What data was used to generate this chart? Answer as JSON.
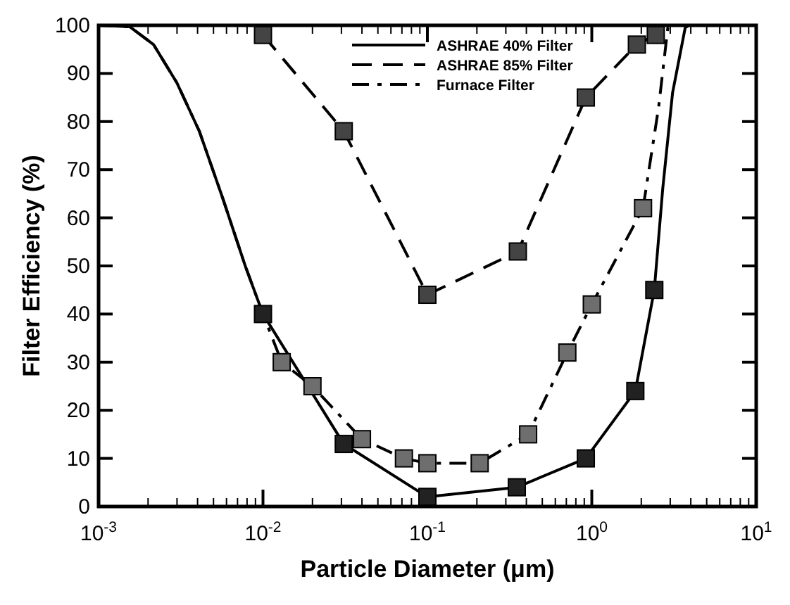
{
  "chart_data": {
    "type": "line",
    "xlabel": "Particle Diameter (μm)",
    "ylabel": "Filter Efficiency (%)",
    "log": "x",
    "grid": false,
    "legend": "top",
    "xlim": [
      0.001,
      10
    ],
    "ylim": [
      0,
      100
    ],
    "xticks": [
      {
        "value": 0.001,
        "label": "10$^{-3}$"
      },
      {
        "value": 0.002,
        "label": null
      },
      {
        "value": 0.003,
        "label": null
      },
      {
        "value": 0.004,
        "label": null
      },
      {
        "value": 0.005,
        "label": null
      },
      {
        "value": 0.006,
        "label": null
      },
      {
        "value": 0.007,
        "label": null
      },
      {
        "value": 0.008,
        "label": null
      },
      {
        "value": 0.009,
        "label": null
      },
      {
        "value": 0.01,
        "label": "10$^{-2}$"
      },
      {
        "value": 0.02,
        "label": null
      },
      {
        "value": 0.03,
        "label": null
      },
      {
        "value": 0.04,
        "label": null
      },
      {
        "value": 0.05,
        "label": null
      },
      {
        "value": 0.06,
        "label": null
      },
      {
        "value": 0.07,
        "label": null
      },
      {
        "value": 0.08,
        "label": null
      },
      {
        "value": 0.09,
        "label": null
      },
      {
        "value": 0.1,
        "label": "10$^{-1}$"
      },
      {
        "value": 0.2,
        "label": null
      },
      {
        "value": 0.3,
        "label": null
      },
      {
        "value": 0.4,
        "label": null
      },
      {
        "value": 0.5,
        "label": null
      },
      {
        "value": 0.6,
        "label": null
      },
      {
        "value": 0.7,
        "label": null
      },
      {
        "value": 0.8,
        "label": null
      },
      {
        "value": 0.9,
        "label": null
      },
      {
        "value": 1,
        "label": "10$^{0}$"
      },
      {
        "value": 2,
        "label": null
      },
      {
        "value": 3,
        "label": null
      },
      {
        "value": 4,
        "label": null
      },
      {
        "value": 5,
        "label": null
      },
      {
        "value": 6,
        "label": null
      },
      {
        "value": 7,
        "label": null
      },
      {
        "value": 8,
        "label": null
      },
      {
        "value": 9,
        "label": null
      },
      {
        "value": 10,
        "label": "10$^{1}$"
      }
    ],
    "yticks": [
      0,
      10,
      20,
      30,
      40,
      50,
      60,
      70,
      80,
      90,
      100
    ],
    "series": [
      {
        "name": "ASHRAE 40% Filter",
        "line_style": "solid",
        "marker": "none",
        "color": "#000000",
        "x": [
          0.001,
          0.00155,
          0.00216,
          0.003,
          0.0041,
          0.0057,
          0.0078,
          0.01,
          0.031,
          0.1,
          0.35,
          0.92,
          1.84,
          2.4,
          2.7,
          3.1,
          3.7,
          3.9
        ],
        "values": [
          100,
          99.7,
          96,
          88,
          78,
          64,
          50,
          40,
          13,
          2,
          4,
          10,
          24,
          45,
          66,
          86,
          99.5,
          100
        ]
      },
      {
        "name": "ASHRAE 85% Filter",
        "line_style": "dashed",
        "marker": "none",
        "color": "#000000",
        "x": [
          0.01,
          0.031,
          0.1,
          0.355,
          0.92,
          1.88,
          2.45
        ],
        "values": [
          98,
          78,
          44,
          53,
          85,
          96,
          98
        ]
      },
      {
        "name": "Furnace Filter",
        "line_style": "dashdot",
        "marker": "none",
        "color": "#000000",
        "x": [
          0.001,
          0.00155,
          0.00216,
          0.003,
          0.0041,
          0.0057,
          0.0078,
          0.01,
          0.013,
          0.02,
          0.04,
          0.072,
          0.1,
          0.208,
          0.41,
          0.71,
          1,
          2.05,
          2.55,
          2.9,
          3.1
        ],
        "values": [
          100,
          99.7,
          96,
          88,
          78,
          64,
          50,
          40,
          30,
          25,
          14,
          10,
          9,
          9,
          15,
          32,
          42,
          62,
          83,
          99.5,
          100
        ]
      },
      {
        "type": "scatter",
        "marker": "square",
        "color": "#222222",
        "x": [
          0.01,
          0.031,
          0.1,
          0.35,
          0.92,
          1.84,
          2.4
        ],
        "values": [
          40,
          13,
          2,
          4,
          10,
          24,
          45
        ]
      },
      {
        "type": "scatter",
        "marker": "square",
        "color": "#444444",
        "x": [
          0.01,
          0.031,
          0.1,
          0.355,
          0.92,
          1.88,
          2.45
        ],
        "values": [
          98,
          78,
          44,
          53,
          85,
          96,
          98
        ]
      },
      {
        "type": "scatter",
        "marker": "square",
        "color": "#6e6e6e",
        "x": [
          0.013,
          0.02,
          0.04,
          0.072,
          0.1,
          0.208,
          0.41,
          0.71,
          1,
          2.05
        ],
        "values": [
          30,
          25,
          14,
          10,
          9,
          9,
          15,
          32,
          42,
          62
        ]
      }
    ]
  }
}
